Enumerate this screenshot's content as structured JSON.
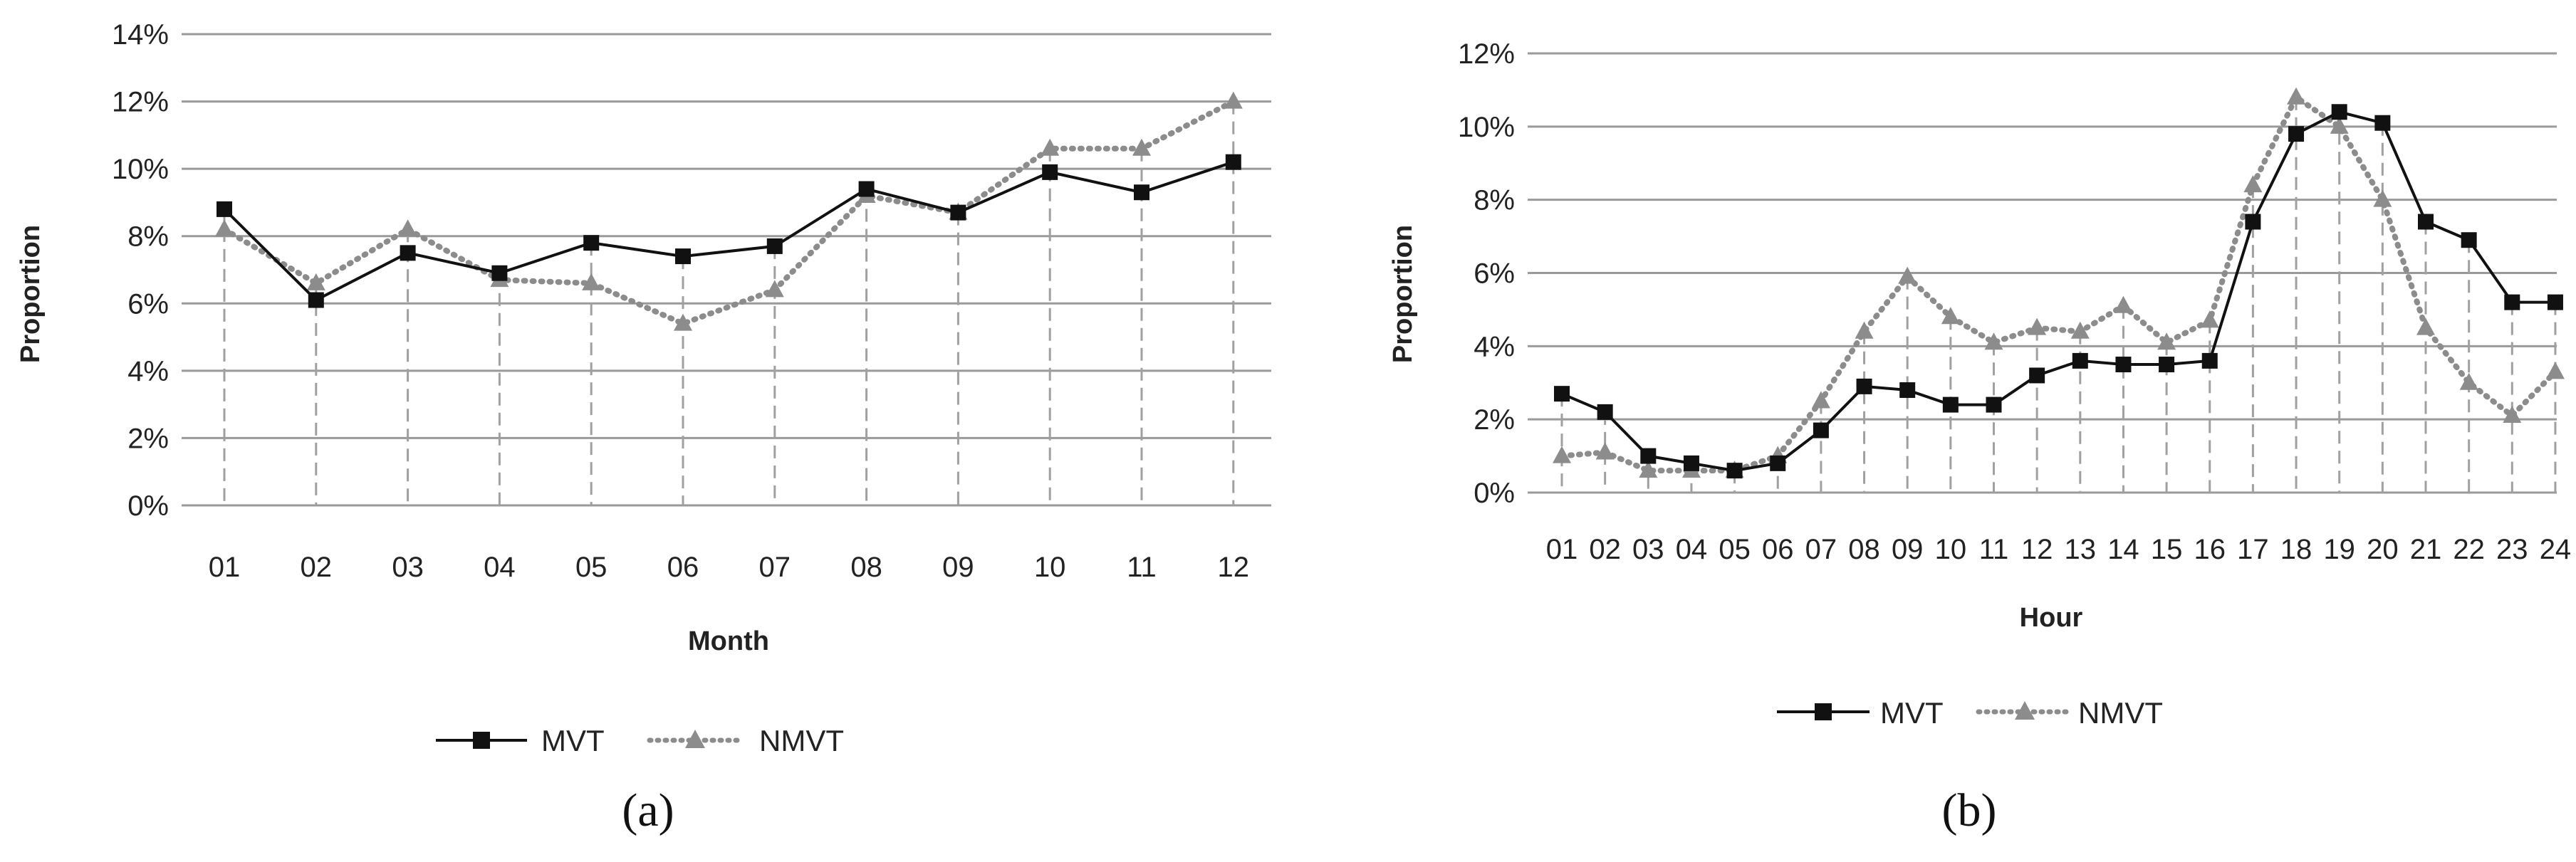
{
  "legend": {
    "mvt": "MVT",
    "nmvt": "NMVT"
  },
  "colors": {
    "mvt": "#111111",
    "nmvt": "#8c8c8c",
    "grid": "#9a9a9a",
    "drop": "#a0a0a0"
  },
  "chart_data": [
    {
      "type": "line",
      "panel_label": "(a)",
      "xlabel": "Month",
      "ylabel": "Proportion",
      "ylim": [
        0,
        14
      ],
      "yticks": [
        "0%",
        "2%",
        "4%",
        "6%",
        "8%",
        "10%",
        "12%",
        "14%"
      ],
      "grid": true,
      "legend_position": "bottom",
      "categories": [
        "01",
        "02",
        "03",
        "04",
        "05",
        "06",
        "07",
        "08",
        "09",
        "10",
        "11",
        "12"
      ],
      "series": [
        {
          "name": "MVT",
          "marker": "square",
          "line": "solid",
          "values": [
            8.8,
            6.1,
            7.5,
            6.9,
            7.8,
            7.4,
            7.7,
            9.4,
            8.7,
            9.9,
            9.3,
            10.2
          ]
        },
        {
          "name": "NMVT",
          "marker": "triangle",
          "line": "dotted",
          "values": [
            8.2,
            6.6,
            8.2,
            6.7,
            6.6,
            5.4,
            6.4,
            9.2,
            8.7,
            10.6,
            10.6,
            12.0
          ]
        }
      ]
    },
    {
      "type": "line",
      "panel_label": "(b)",
      "xlabel": "Hour",
      "ylabel": "Proportion",
      "ylim": [
        0,
        12
      ],
      "yticks": [
        "0%",
        "2%",
        "4%",
        "6%",
        "8%",
        "10%",
        "12%"
      ],
      "grid": true,
      "legend_position": "bottom",
      "categories": [
        "01",
        "02",
        "03",
        "04",
        "05",
        "06",
        "07",
        "08",
        "09",
        "10",
        "11",
        "12",
        "13",
        "14",
        "15",
        "16",
        "17",
        "18",
        "19",
        "20",
        "21",
        "22",
        "23",
        "24"
      ],
      "series": [
        {
          "name": "MVT",
          "marker": "square",
          "line": "solid",
          "values": [
            2.7,
            2.2,
            1.0,
            0.8,
            0.6,
            0.8,
            1.7,
            2.9,
            2.8,
            2.4,
            2.4,
            3.2,
            3.6,
            3.5,
            3.5,
            3.6,
            7.4,
            9.8,
            10.4,
            10.1,
            7.4,
            6.9,
            5.2,
            5.2
          ]
        },
        {
          "name": "NMVT",
          "marker": "triangle",
          "line": "dotted",
          "values": [
            1.0,
            1.1,
            0.6,
            0.6,
            0.6,
            1.0,
            2.5,
            4.4,
            5.9,
            4.8,
            4.1,
            4.5,
            4.4,
            5.1,
            4.1,
            4.7,
            8.4,
            10.8,
            10.0,
            8.0,
            4.5,
            3.0,
            2.1,
            3.3
          ]
        }
      ]
    }
  ]
}
